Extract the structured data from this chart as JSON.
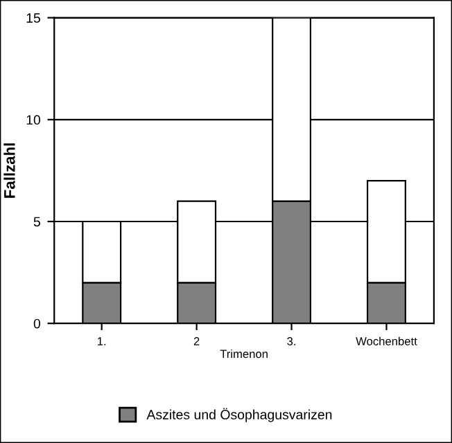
{
  "chart_data": {
    "type": "bar",
    "stacked": true,
    "ylabel": "Fallzahl",
    "xlabel": "Trimenon",
    "categories": [
      "1.",
      "2",
      "3.",
      "Wochenbett"
    ],
    "series": [
      {
        "name": "Aszites und Ösophagusvarizen",
        "color": "#808080",
        "values": [
          2,
          2,
          6,
          2
        ]
      },
      {
        "color": "#ffffff",
        "values": [
          3,
          4,
          9,
          5
        ]
      }
    ],
    "ylim": [
      0,
      15
    ],
    "yticks": [
      0,
      5,
      10,
      15
    ],
    "grid": "y",
    "legend": "bottom"
  }
}
